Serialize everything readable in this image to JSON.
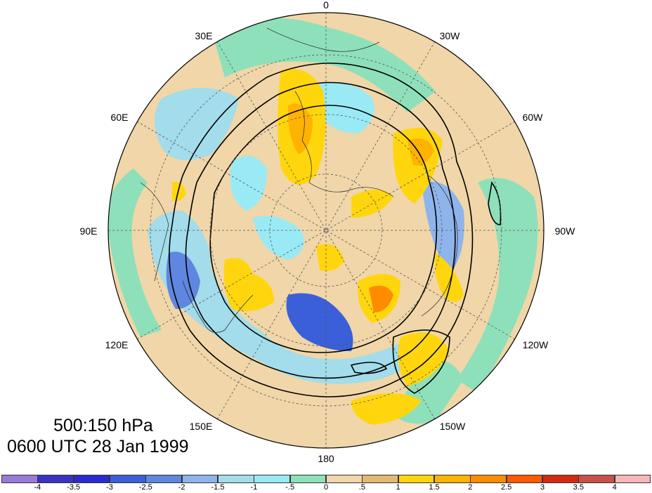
{
  "caption": {
    "level": "500:150 hPa",
    "time": "0600 UTC 28 Jan 1999"
  },
  "longitude_labels": {
    "lon_0": "0",
    "lon_30w": "30W",
    "lon_60w": "60W",
    "lon_90w": "90W",
    "lon_120w": "120W",
    "lon_150w": "150W",
    "lon_180": "180",
    "lon_150e": "150E",
    "lon_120e": "120E",
    "lon_90e": "90E",
    "lon_60e": "60E",
    "lon_30e": "30E"
  },
  "colorbar": {
    "colors": [
      "#9a7ad9",
      "#3a32c4",
      "#2a2ad0",
      "#3a5fd8",
      "#5f86e0",
      "#8fb4ec",
      "#a3dcea",
      "#9aeaf5",
      "#8ee0ba",
      "#f0d6a8",
      "#e2b873",
      "#ffd60d",
      "#ffb300",
      "#ff8c00",
      "#ff5a00",
      "#d42a10",
      "#c8504a",
      "#f7b6b8"
    ],
    "tick_labels": [
      "-4",
      "-3.5",
      "-3",
      "-2.5",
      "-2",
      "-1.5",
      "-1",
      "-.5",
      "0",
      ".5",
      "1",
      "1.5",
      "2",
      "2.5",
      "3",
      "3.5",
      "4"
    ]
  }
}
